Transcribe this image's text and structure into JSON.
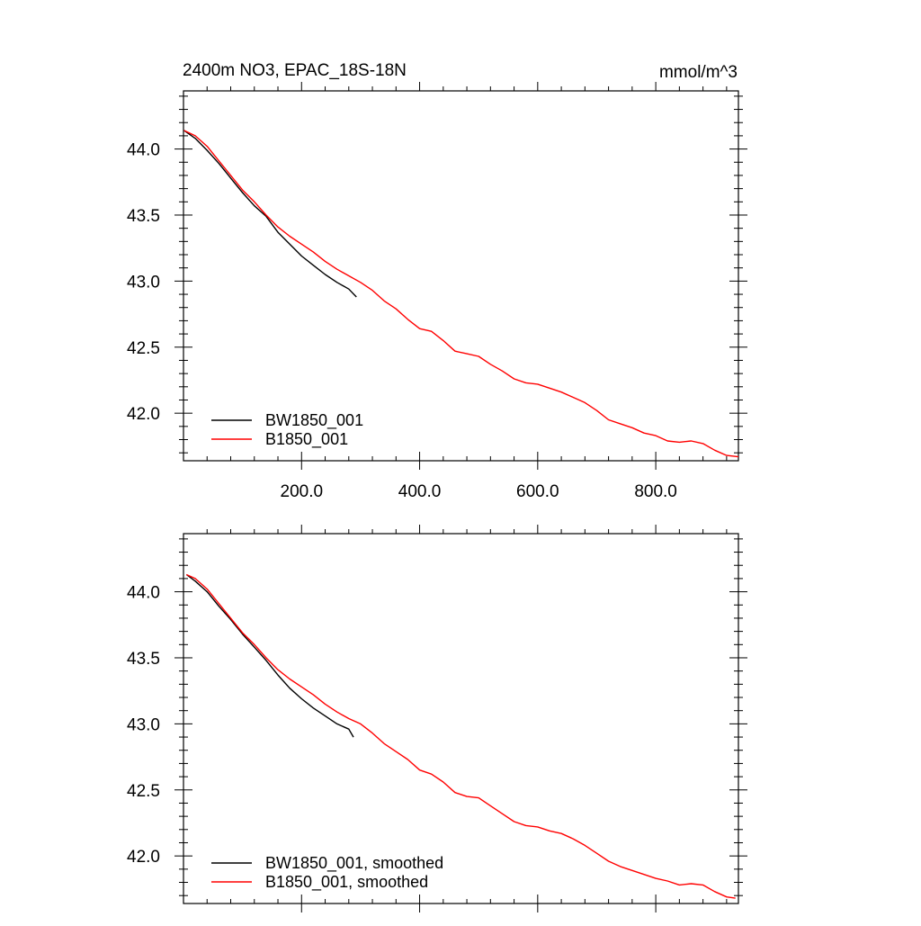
{
  "header": {
    "title_left": "2400m NO3, EPAC_18S-18N",
    "title_right": "mmol/m^3"
  },
  "colors": {
    "series_black": "#000000",
    "series_red": "#ff0000"
  },
  "chart_data": [
    {
      "type": "line",
      "panel": "top",
      "xlim": [
        0,
        940
      ],
      "ylim": [
        41.64,
        44.44
      ],
      "x_ticks": [
        200,
        400,
        600,
        800
      ],
      "x_tick_labels": [
        "200.0",
        "400.0",
        "600.0",
        "800.0"
      ],
      "y_ticks": [
        42.0,
        42.5,
        43.0,
        43.5,
        44.0
      ],
      "y_tick_labels": [
        "42.0",
        "42.5",
        "43.0",
        "43.5",
        "44.0"
      ],
      "legend_position": "bottom-left",
      "series": [
        {
          "name": "BW1850_001",
          "color": "#000000",
          "x": [
            1,
            20,
            40,
            60,
            80,
            100,
            120,
            140,
            160,
            180,
            200,
            220,
            240,
            260,
            280,
            293
          ],
          "y": [
            44.14,
            44.08,
            43.99,
            43.89,
            43.78,
            43.67,
            43.57,
            43.49,
            43.37,
            43.28,
            43.19,
            43.12,
            43.05,
            42.99,
            42.94,
            42.88
          ]
        },
        {
          "name": "B1850_001",
          "color": "#ff0000",
          "x": [
            1,
            20,
            40,
            60,
            80,
            100,
            120,
            140,
            160,
            180,
            200,
            220,
            240,
            260,
            280,
            300,
            320,
            340,
            360,
            380,
            400,
            420,
            440,
            460,
            480,
            500,
            520,
            540,
            560,
            580,
            600,
            620,
            640,
            660,
            680,
            700,
            720,
            740,
            760,
            780,
            800,
            820,
            840,
            860,
            880,
            900,
            920,
            940
          ],
          "y": [
            44.14,
            44.1,
            44.02,
            43.91,
            43.8,
            43.69,
            43.6,
            43.5,
            43.41,
            43.34,
            43.28,
            43.22,
            43.15,
            43.09,
            43.04,
            42.99,
            42.93,
            42.85,
            42.79,
            42.71,
            42.64,
            42.62,
            42.55,
            42.47,
            42.45,
            42.43,
            42.37,
            42.32,
            42.26,
            42.23,
            42.22,
            42.19,
            42.16,
            42.12,
            42.08,
            42.02,
            41.95,
            41.92,
            41.89,
            41.85,
            41.83,
            41.79,
            41.78,
            41.79,
            41.77,
            41.72,
            41.68,
            41.67
          ]
        }
      ]
    },
    {
      "type": "line",
      "panel": "bottom",
      "xlim": [
        0,
        940
      ],
      "ylim": [
        41.64,
        44.44
      ],
      "x_ticks": [
        200,
        400,
        600,
        800
      ],
      "y_ticks": [
        42.0,
        42.5,
        43.0,
        43.5,
        44.0
      ],
      "y_tick_labels": [
        "42.0",
        "42.5",
        "43.0",
        "43.5",
        "44.0"
      ],
      "legend_position": "bottom-left",
      "series": [
        {
          "name": "BW1850_001, smoothed",
          "color": "#000000",
          "x": [
            5,
            20,
            40,
            60,
            80,
            100,
            120,
            140,
            160,
            180,
            200,
            220,
            240,
            260,
            280,
            288
          ],
          "y": [
            44.13,
            44.08,
            44.0,
            43.89,
            43.79,
            43.68,
            43.58,
            43.48,
            43.37,
            43.27,
            43.19,
            43.12,
            43.06,
            43.0,
            42.96,
            42.9
          ]
        },
        {
          "name": "B1850_001, smoothed",
          "color": "#ff0000",
          "x": [
            5,
            20,
            40,
            60,
            80,
            100,
            120,
            140,
            160,
            180,
            200,
            220,
            240,
            260,
            280,
            300,
            320,
            340,
            360,
            380,
            400,
            420,
            440,
            460,
            480,
            500,
            520,
            540,
            560,
            580,
            600,
            620,
            640,
            660,
            680,
            700,
            720,
            740,
            760,
            780,
            800,
            820,
            840,
            860,
            880,
            900,
            920,
            935
          ],
          "y": [
            44.13,
            44.1,
            44.02,
            43.91,
            43.8,
            43.69,
            43.6,
            43.5,
            43.41,
            43.34,
            43.28,
            43.22,
            43.15,
            43.09,
            43.04,
            43.0,
            42.93,
            42.85,
            42.79,
            42.73,
            42.65,
            42.62,
            42.56,
            42.48,
            42.45,
            42.44,
            42.38,
            42.32,
            42.26,
            42.23,
            42.22,
            42.19,
            42.17,
            42.13,
            42.08,
            42.02,
            41.96,
            41.92,
            41.89,
            41.86,
            41.83,
            41.81,
            41.78,
            41.79,
            41.78,
            41.73,
            41.69,
            41.68
          ]
        }
      ]
    }
  ]
}
